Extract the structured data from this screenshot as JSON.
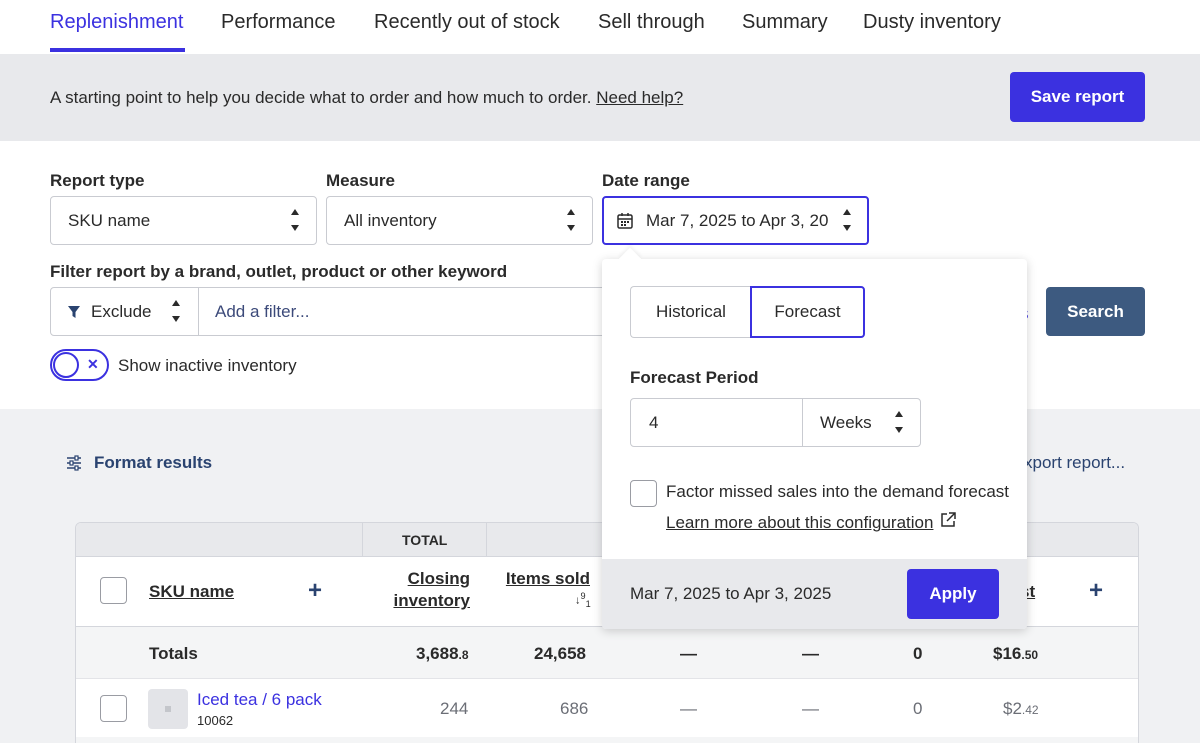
{
  "tabs": [
    {
      "label": "Replenishment",
      "active": true
    },
    {
      "label": "Performance"
    },
    {
      "label": "Recently out of stock"
    },
    {
      "label": "Sell through"
    },
    {
      "label": "Summary"
    },
    {
      "label": "Dusty inventory"
    }
  ],
  "banner": {
    "text": "A starting point to help you decide what to order and how much to order. ",
    "help_link": "Need help?",
    "save_label": "Save report"
  },
  "form": {
    "report_type_label": "Report type",
    "report_type_value": "SKU name",
    "measure_label": "Measure",
    "measure_value": "All inventory",
    "date_range_label": "Date range",
    "date_range_value": "Mar 7, 2025 to Apr 3, 20",
    "filter_label": "Filter report by a brand, outlet, product or other keyword",
    "exclude_value": "Exclude",
    "filter_placeholder": "Add a filter...",
    "partial_link": "s",
    "search_label": "Search",
    "toggle_label": "Show inactive inventory"
  },
  "results": {
    "format_label": "Format results",
    "export_label": "xport report...",
    "table": {
      "group_header": "TOTAL",
      "headers": {
        "sku": "SKU name",
        "closing": "Closing inventory",
        "items_sold": "Items sold",
        "partial_last": "st"
      },
      "totals": {
        "label": "Totals",
        "closing_main": "3,688",
        "closing_dec": ".8",
        "items_sold": "24,658",
        "dash1": "—",
        "dash2": "—",
        "zero": "0",
        "cost_main": "$16",
        "cost_dec": ".50"
      },
      "rows": [
        {
          "name": "Iced tea / 6 pack",
          "sku": "10062",
          "closing": "244",
          "items_sold": "686",
          "dash1": "—",
          "dash2": "—",
          "zero": "0",
          "cost_main": "$2",
          "cost_dec": ".42"
        }
      ]
    }
  },
  "popover": {
    "historical_label": "Historical",
    "forecast_label": "Forecast",
    "period_label": "Forecast Period",
    "period_value": "4",
    "period_unit": "Weeks",
    "missed_sales_label": "Factor missed sales into the demand forecast",
    "learn_more_label": "Learn more about this configuration",
    "footer_range": "Mar 7, 2025 to Apr 3, 2025",
    "apply_label": "Apply"
  },
  "colors": {
    "accent": "#3b31e0",
    "search_button": "#3d5a80",
    "banner_bg": "#e8e9ec",
    "results_bg": "#f0f1f3"
  },
  "icons": [
    "calendar-icon",
    "filter-funnel-icon",
    "sliders-icon",
    "external-link-icon",
    "sort-desc-icon",
    "plus-icon",
    "close-x-icon"
  ]
}
